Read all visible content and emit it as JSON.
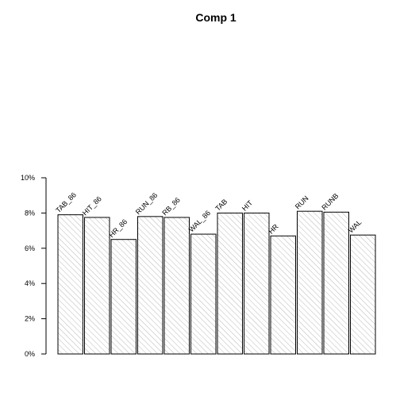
{
  "chart_data": {
    "type": "bar",
    "title": "Comp 1",
    "xlabel": "",
    "ylabel": "",
    "categories": [
      "TAB_86",
      "HIT_86",
      "HR_86",
      "RUN_86",
      "RB_86",
      "WAL_86",
      "TAB",
      "HIT",
      "HR",
      "RUN",
      "RUNB",
      "WAL"
    ],
    "values": [
      7.9,
      7.75,
      6.5,
      7.8,
      7.75,
      6.8,
      8.0,
      8.0,
      6.7,
      8.1,
      8.05,
      6.75
    ],
    "ylim": [
      0,
      10
    ],
    "yticks": [
      0,
      2,
      4,
      6,
      8,
      10
    ],
    "ytick_labels": [
      "0%",
      "2%",
      "4%",
      "6%",
      "8%",
      "10%"
    ],
    "grid": false,
    "fill": "hatched",
    "colors": {
      "bar_fill": "#ffffff",
      "hatch": "#9a9a9a",
      "stroke": "#000000"
    }
  }
}
